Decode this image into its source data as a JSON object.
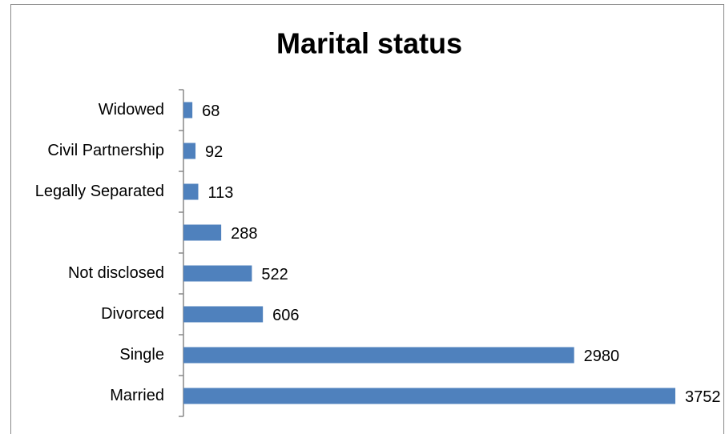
{
  "chart_data": {
    "type": "bar",
    "orientation": "horizontal",
    "title": "Marital status",
    "categories": [
      "Widowed",
      "Civil Partnership",
      "Legally Separated",
      null,
      "Not disclosed",
      "Divorced",
      "Single",
      "Married"
    ],
    "values": [
      68,
      92,
      113,
      288,
      522,
      606,
      2980,
      3752
    ],
    "color": "#4f81bd"
  }
}
